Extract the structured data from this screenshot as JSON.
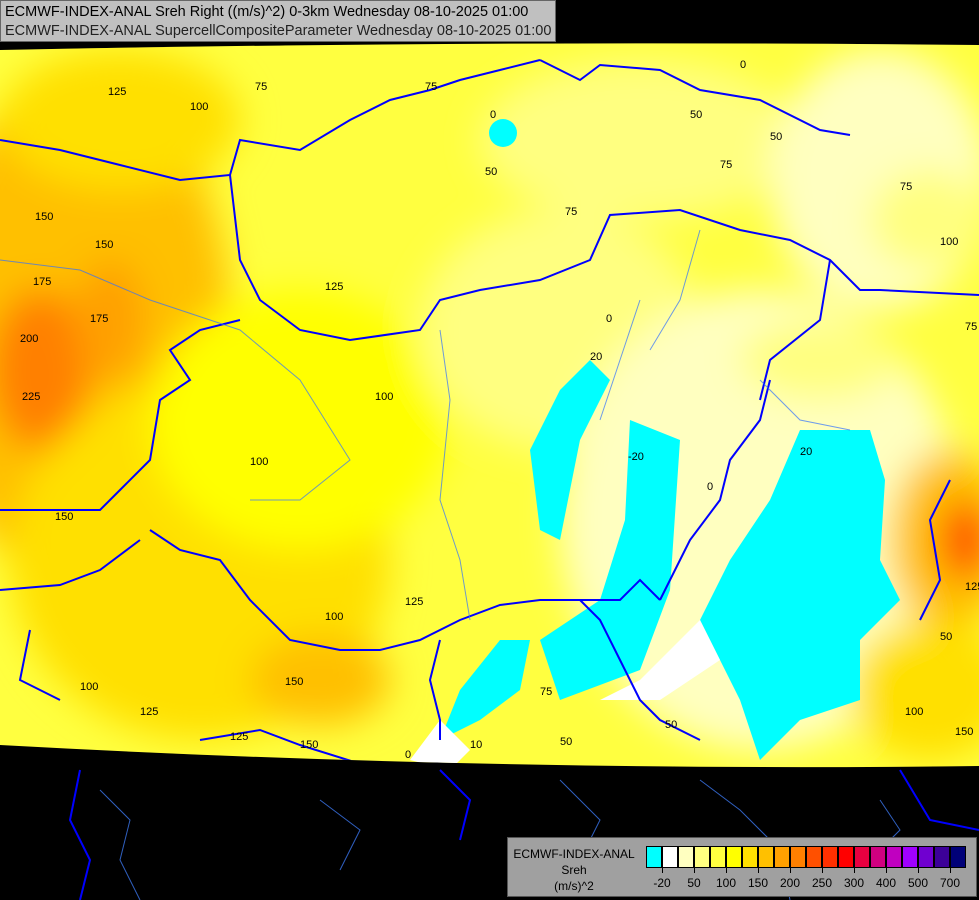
{
  "header": {
    "line1": "ECMWF-INDEX-ANAL Sreh Right ((m/s)^2) 0-3km Wednesday 08-10-2025 01:00",
    "line2": "ECMWF-INDEX-ANAL SupercellCompositeParameter Wednesday 08-10-2025 01:00"
  },
  "legend": {
    "model": "ECMWF-INDEX-ANAL",
    "variable": "Sreh",
    "unit": "(m/s)^2",
    "colors": [
      "#00ffff",
      "#ffffff",
      "#ffffc0",
      "#ffff80",
      "#ffff40",
      "#ffff00",
      "#ffe000",
      "#ffc000",
      "#ffa000",
      "#ff8000",
      "#ff5000",
      "#ff3000",
      "#ff0000",
      "#e80040",
      "#d00080",
      "#c000c0",
      "#a000ff",
      "#7000d0",
      "#3c0098",
      "#000078"
    ],
    "tick_labels": [
      "-20",
      "50",
      "100",
      "150",
      "200",
      "250",
      "300",
      "400",
      "500",
      "700"
    ]
  },
  "map": {
    "border_color": "#0000ff",
    "river_color": "#3070ff",
    "contour_labels": [
      "125",
      "100",
      "75",
      "75",
      "0",
      "50",
      "50",
      "75",
      "0",
      "150",
      "150",
      "175",
      "175",
      "200",
      "225",
      "125",
      "100",
      "100",
      "20",
      "0",
      "-20",
      "0",
      "20",
      "150",
      "100",
      "125",
      "100",
      "150",
      "125",
      "150",
      "125",
      "0",
      "10",
      "75",
      "50",
      "50",
      "75",
      "100",
      "50",
      "75",
      "50",
      "75",
      "125",
      "150",
      "100"
    ]
  }
}
